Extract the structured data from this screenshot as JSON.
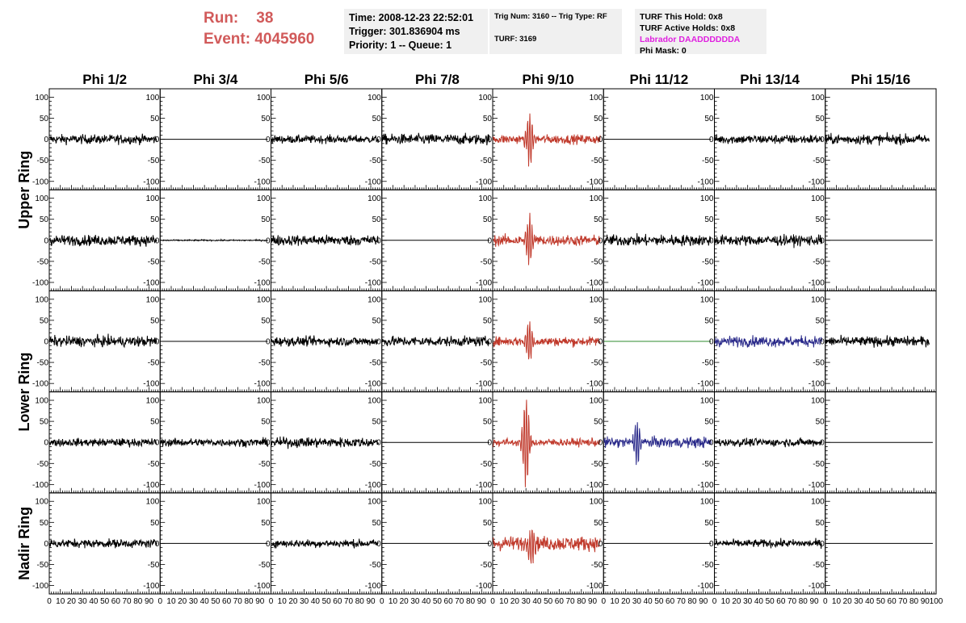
{
  "header": {
    "run_label": "Run:",
    "run_value": "38",
    "event_label": "Event:",
    "event_value": "4045960",
    "time": "Time: 2008-12-23 22:52:01",
    "trigger": "Trigger: 301.836904 ms",
    "priority": "Priority: 1 -- Queue: 1",
    "trig_num": "Trig Num: 3160 -- Trig Type: RF",
    "turf": "TURF: 3169",
    "turf_this_hold": "TURF This Hold: 0x8",
    "turf_active_holds": "TURF Active Holds: 0x8",
    "labrador": "Labrador DAADDDDDDA",
    "phi_mask": "Phi Mask: 0",
    "colors": {
      "run": "#d15a5a",
      "labrador": "#e020e0"
    }
  },
  "chart_data": {
    "type": "line",
    "columns": [
      "Phi 1/2",
      "Phi 3/4",
      "Phi 5/6",
      "Phi 7/8",
      "Phi 9/10",
      "Phi 11/12",
      "Phi 13/14",
      "Phi 15/16"
    ],
    "ring_labels": [
      {
        "text": "Upper Ring",
        "rows": [
          0,
          1
        ]
      },
      {
        "text": "Lower Ring",
        "rows": [
          2,
          3
        ]
      },
      {
        "text": "Nadir Ring",
        "rows": [
          4,
          4
        ]
      }
    ],
    "ylim": [
      -120,
      120
    ],
    "xlim": [
      0,
      100
    ],
    "yticks": [
      -100,
      -50,
      0,
      50,
      100
    ],
    "yticklabels": [
      "-100",
      "-50",
      "0",
      "50",
      "100"
    ],
    "xticks": [
      0,
      10,
      20,
      30,
      40,
      50,
      60,
      70,
      80,
      90,
      100
    ],
    "xticklabels": [
      "0",
      "10",
      "20",
      "30",
      "40",
      "50",
      "60",
      "70",
      "80",
      "90",
      "100"
    ],
    "trace_colors": {
      "normal": "#000000",
      "trigger": "#c0392b",
      "secondary": "#2a2a8a",
      "dead": "#2e8b2e"
    },
    "panels": [
      [
        {
          "kind": "noise",
          "amp": 14,
          "color": "normal"
        },
        {
          "kind": "flat",
          "color": "normal"
        },
        {
          "kind": "noise",
          "amp": 12,
          "color": "normal"
        },
        {
          "kind": "noise",
          "amp": 16,
          "color": "normal"
        },
        {
          "kind": "pulse",
          "amp": 14,
          "peak": 65,
          "center": 33,
          "color": "trigger"
        },
        {
          "kind": "flat",
          "color": "normal"
        },
        {
          "kind": "noise",
          "amp": 14,
          "color": "normal"
        },
        {
          "kind": "noise",
          "amp": 15,
          "color": "normal",
          "end": 94
        }
      ],
      [
        {
          "kind": "noise",
          "amp": 16,
          "color": "normal"
        },
        {
          "kind": "noise",
          "amp": 2,
          "color": "normal"
        },
        {
          "kind": "noise",
          "amp": 16,
          "color": "normal"
        },
        {
          "kind": "flat",
          "color": "normal"
        },
        {
          "kind": "pulse",
          "amp": 16,
          "peak": 60,
          "center": 33,
          "color": "trigger"
        },
        {
          "kind": "noise",
          "amp": 17,
          "color": "normal"
        },
        {
          "kind": "noise",
          "amp": 16,
          "color": "normal"
        },
        {
          "kind": "flat",
          "color": "normal"
        }
      ],
      [
        {
          "kind": "noise",
          "amp": 16,
          "color": "normal"
        },
        {
          "kind": "flat",
          "color": "normal"
        },
        {
          "kind": "noise",
          "amp": 14,
          "color": "normal"
        },
        {
          "kind": "noise",
          "amp": 15,
          "color": "normal"
        },
        {
          "kind": "pulse",
          "amp": 14,
          "peak": 55,
          "center": 33,
          "color": "trigger"
        },
        {
          "kind": "flat",
          "color": "dead"
        },
        {
          "kind": "noise",
          "amp": 16,
          "color": "secondary"
        },
        {
          "kind": "noise",
          "amp": 15,
          "color": "normal",
          "end": 94
        }
      ],
      [
        {
          "kind": "noise",
          "amp": 12,
          "color": "normal"
        },
        {
          "kind": "noise",
          "amp": 12,
          "color": "normal"
        },
        {
          "kind": "noise",
          "amp": 15,
          "color": "normal"
        },
        {
          "kind": "flat",
          "color": "normal"
        },
        {
          "kind": "pulse",
          "amp": 12,
          "peak": 115,
          "center": 30,
          "color": "trigger"
        },
        {
          "kind": "pulse",
          "amp": 16,
          "peak": 50,
          "center": 30,
          "color": "secondary"
        },
        {
          "kind": "noise",
          "amp": 12,
          "color": "normal"
        },
        {
          "kind": "flat",
          "color": "normal"
        }
      ],
      [
        {
          "kind": "noise",
          "amp": 13,
          "color": "normal"
        },
        {
          "kind": "flat",
          "color": "normal"
        },
        {
          "kind": "noise",
          "amp": 12,
          "color": "normal"
        },
        {
          "kind": "flat",
          "color": "normal"
        },
        {
          "kind": "pulse",
          "amp": 22,
          "peak": 45,
          "center": 35,
          "color": "trigger"
        },
        {
          "kind": "flat",
          "color": "normal"
        },
        {
          "kind": "noise",
          "amp": 12,
          "color": "normal"
        },
        {
          "kind": "flat",
          "color": "normal"
        }
      ]
    ]
  }
}
